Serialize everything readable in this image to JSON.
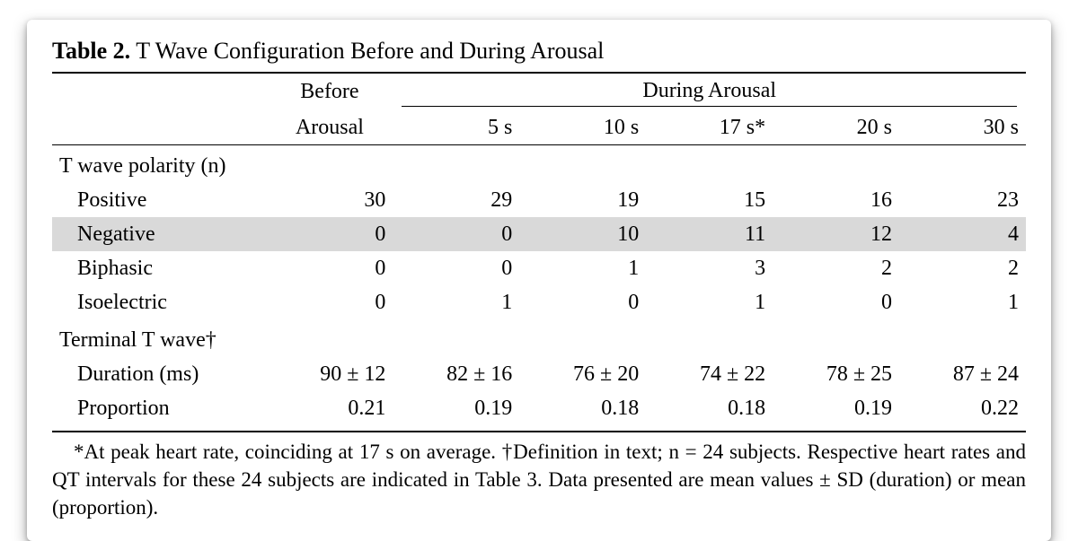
{
  "title": {
    "label": "Table 2.",
    "caption": "T Wave Configuration Before and During Arousal"
  },
  "headers": {
    "before_top": "Before",
    "before_bot": "Arousal",
    "during_spanner": "During Arousal",
    "cols": {
      "c5": "5 s",
      "c10": "10 s",
      "c17": "17 s*",
      "c20": "20 s",
      "c30": "30 s"
    }
  },
  "sections": {
    "polarity": {
      "label": "T wave polarity (n)",
      "rows": {
        "positive": {
          "label": "Positive",
          "before": "30",
          "c5": "29",
          "c10": "19",
          "c17": "15",
          "c20": "16",
          "c30": "23"
        },
        "negative": {
          "label": "Negative",
          "before": "0",
          "c5": "0",
          "c10": "10",
          "c17": "11",
          "c20": "12",
          "c30": "4"
        },
        "biphasic": {
          "label": "Biphasic",
          "before": "0",
          "c5": "0",
          "c10": "1",
          "c17": "3",
          "c20": "2",
          "c30": "2"
        },
        "isoelectric": {
          "label": "Isoelectric",
          "before": "0",
          "c5": "1",
          "c10": "0",
          "c17": "1",
          "c20": "0",
          "c30": "1"
        }
      }
    },
    "terminal": {
      "label": "Terminal T wave†",
      "rows": {
        "duration": {
          "label": "Duration (ms)",
          "before": "90 ± 12",
          "c5": "82 ± 16",
          "c10": "76 ± 20",
          "c17": "74 ± 22",
          "c20": "78 ± 25",
          "c30": "87 ± 24"
        },
        "proportion": {
          "label": "Proportion",
          "before": "0.21",
          "c5": "0.19",
          "c10": "0.18",
          "c17": "0.18",
          "c20": "0.19",
          "c30": "0.22"
        }
      }
    }
  },
  "footnote": "*At peak heart rate, coinciding at 17 s on average. †Definition in text; n = 24 subjects. Respective heart rates and QT intervals for these 24 subjects are indicated in Table 3. Data presented are mean values ± SD (duration) or mean (proportion)."
}
